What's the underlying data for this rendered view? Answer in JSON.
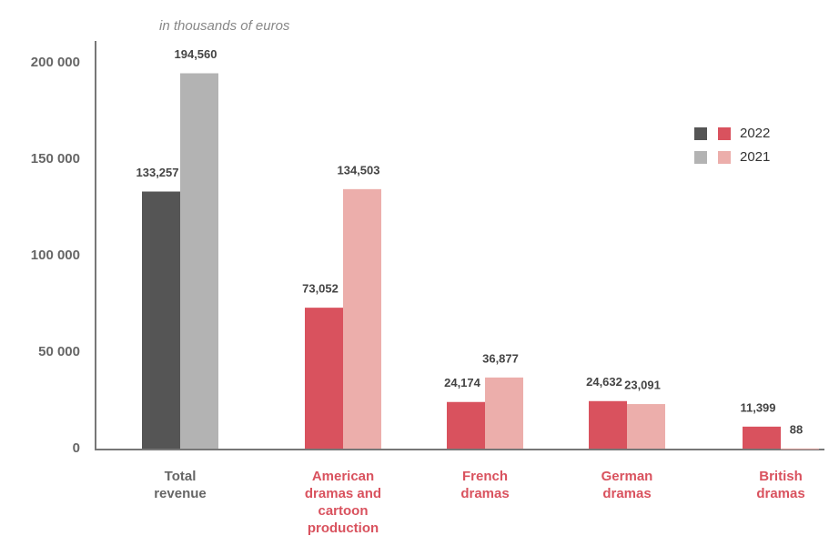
{
  "chart_data": {
    "type": "bar",
    "subtitle": "in thousands of euros",
    "categories": [
      "Total revenue",
      "American dramas and cartoon production",
      "French dramas",
      "German dramas",
      "British dramas"
    ],
    "series": [
      {
        "name": "2022",
        "colors": [
          "#555555",
          "#d9525e",
          "#d9525e",
          "#d9525e",
          "#d9525e"
        ],
        "values": [
          133257,
          73052,
          24174,
          24632,
          11399
        ],
        "value_labels": [
          "133,257",
          "73,052",
          "24,174",
          "24,632",
          "11,399"
        ]
      },
      {
        "name": "2021",
        "colors": [
          "#b3b3b3",
          "#ecaeab",
          "#ecaeab",
          "#ecaeab",
          "#ecaeab"
        ],
        "values": [
          194560,
          134503,
          36877,
          23091,
          88
        ],
        "value_labels": [
          "194,560",
          "134,503",
          "36,877",
          "23,091",
          "88"
        ]
      }
    ],
    "category_colors": [
      "#666666",
      "#d9525e",
      "#d9525e",
      "#d9525e",
      "#d9525e"
    ],
    "ylim": [
      0,
      200000
    ],
    "yticks": [
      0,
      {
        "value": 50000,
        "label": "50 000"
      },
      {
        "value": 100000,
        "label": "100 000"
      },
      {
        "value": 150000,
        "label": "150 000"
      },
      {
        "value": 200000,
        "label": "200 000"
      }
    ],
    "grid": false,
    "legend": "upper right"
  }
}
